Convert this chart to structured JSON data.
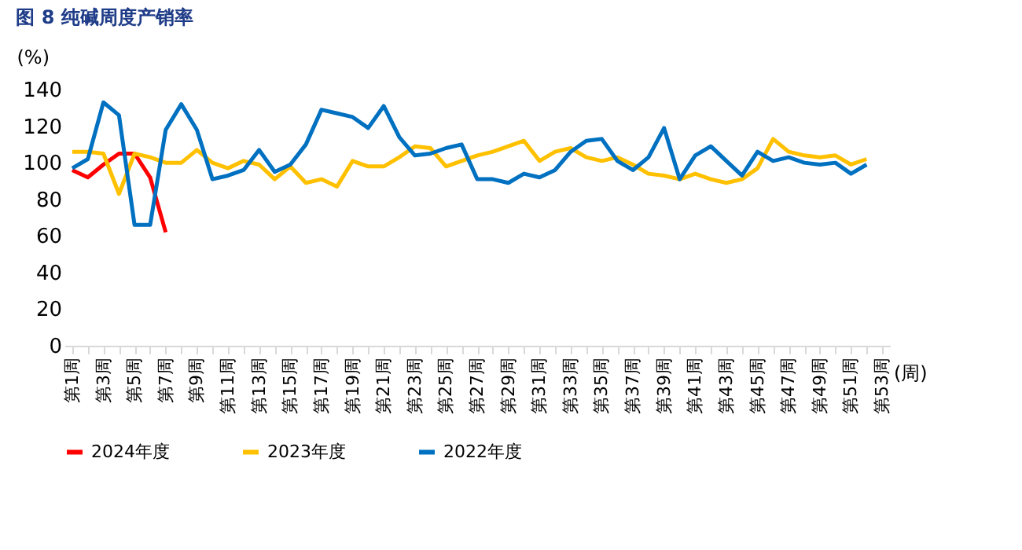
{
  "chart_data": {
    "type": "line",
    "title": "图 8  纯碱周度产销率",
    "ylabel": "(%)",
    "xlabel": "(周)",
    "categories": [
      "第1周",
      null,
      "第3周",
      null,
      "第5周",
      null,
      "第7周",
      null,
      "第9周",
      null,
      "第11周",
      null,
      "第13周",
      null,
      "第15周",
      null,
      "第17周",
      null,
      "第19周",
      null,
      "第21周",
      null,
      "第23周",
      null,
      "第25周",
      null,
      "第27周",
      null,
      "第29周",
      null,
      "第31周",
      null,
      "第33周",
      null,
      "第35周",
      null,
      "第37周",
      null,
      "第39周",
      null,
      "第41周",
      null,
      "第43周",
      null,
      "第45周",
      null,
      "第47周",
      null,
      "第49周",
      null,
      "第51周",
      null,
      "第53周"
    ],
    "ylim": [
      0,
      140
    ],
    "yticks": [
      0,
      20,
      40,
      60,
      80,
      100,
      120,
      140
    ],
    "grid": false,
    "legend": "bottom",
    "marker": "none",
    "line_style": "solid",
    "series": [
      {
        "name": "2024年度",
        "color": "#ff0000",
        "values": [
          96,
          92,
          99,
          105,
          105,
          92,
          62,
          null,
          null,
          null,
          null,
          null,
          null,
          null,
          null,
          null,
          null,
          null,
          null,
          null,
          null,
          null,
          null,
          null,
          null,
          null,
          null,
          null,
          null,
          null,
          null,
          null,
          null,
          null,
          null,
          null,
          null,
          null,
          null,
          null,
          null,
          null,
          null,
          null,
          null,
          null,
          null,
          null,
          null,
          null,
          null,
          null,
          null
        ]
      },
      {
        "name": "2023年度",
        "color": "#ffc000",
        "values": [
          106,
          106,
          105,
          83,
          105,
          103,
          100,
          100,
          107,
          100,
          97,
          101,
          99,
          91,
          98,
          89,
          91,
          87,
          101,
          98,
          98,
          103,
          109,
          108,
          98,
          101,
          104,
          106,
          109,
          112,
          101,
          106,
          108,
          103,
          101,
          103,
          99,
          94,
          93,
          91,
          94,
          91,
          89,
          91,
          97,
          113,
          106,
          104,
          103,
          104,
          99,
          102,
          null
        ]
      },
      {
        "name": "2022年度",
        "color": "#0070c0",
        "values": [
          97,
          102,
          133,
          126,
          66,
          66,
          118,
          132,
          118,
          91,
          93,
          96,
          107,
          95,
          99,
          110,
          129,
          127,
          125,
          119,
          131,
          114,
          104,
          105,
          108,
          110,
          91,
          91,
          89,
          94,
          92,
          96,
          106,
          112,
          113,
          101,
          96,
          103,
          119,
          91,
          104,
          109,
          101,
          93,
          106,
          101,
          103,
          100,
          99,
          100,
          94,
          99,
          null
        ]
      }
    ]
  }
}
